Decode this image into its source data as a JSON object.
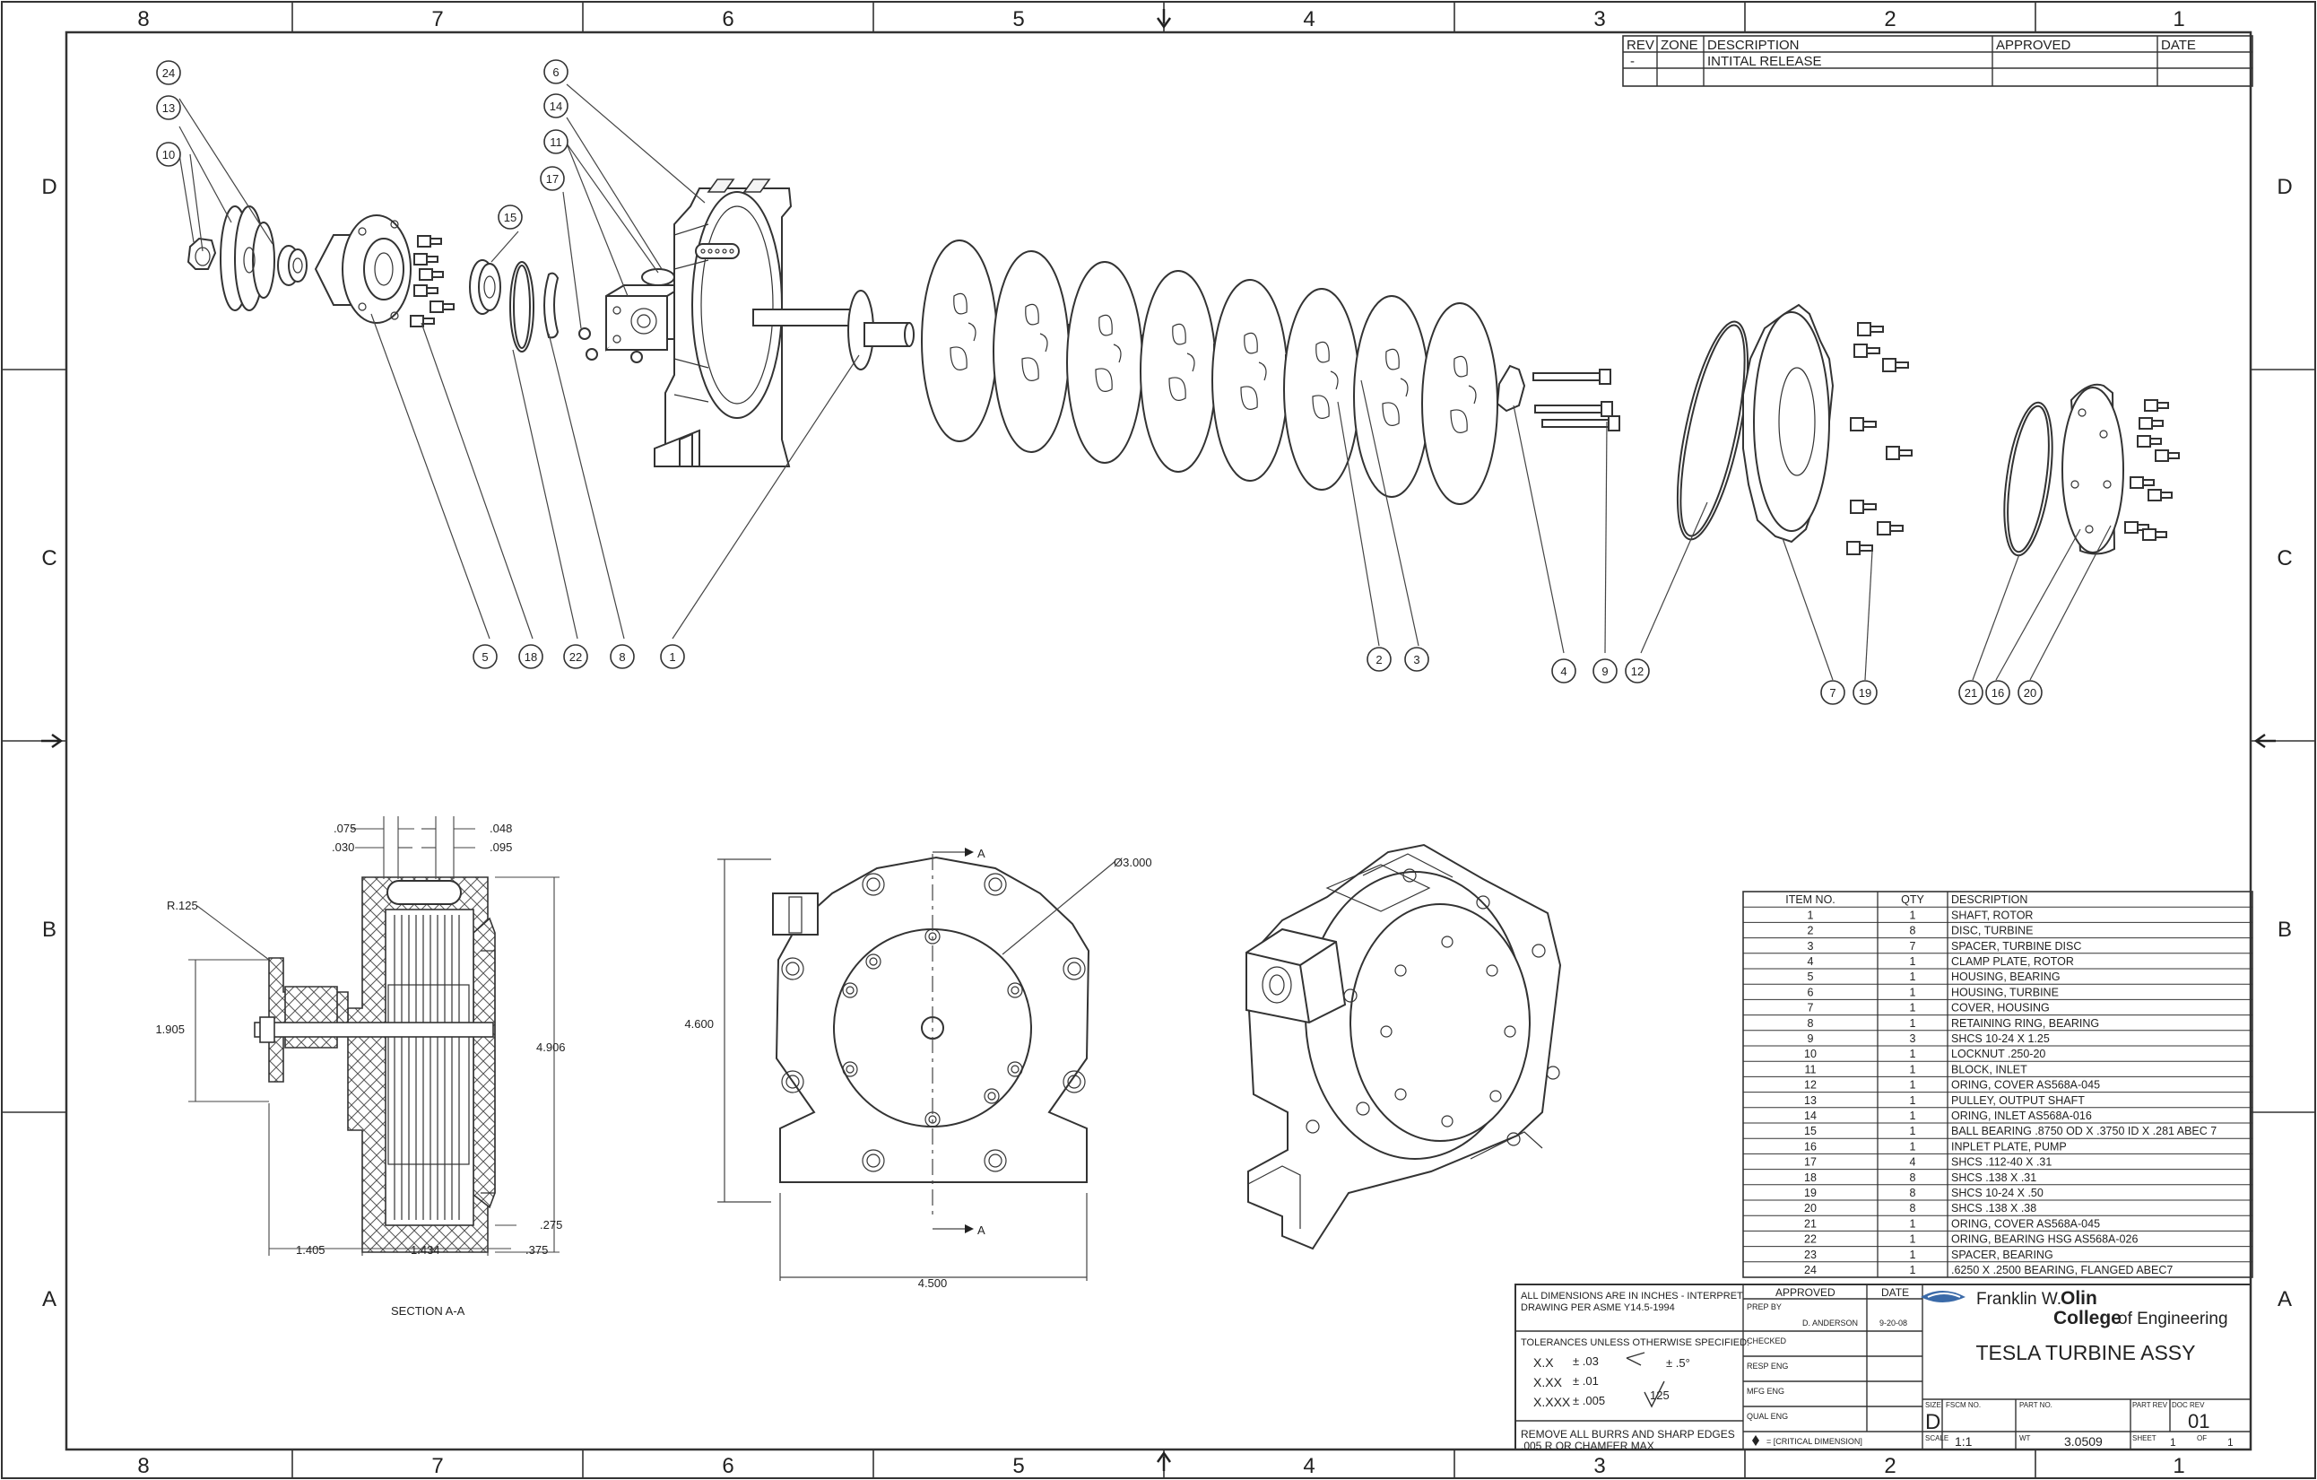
{
  "zones": {
    "columns": [
      "8",
      "7",
      "6",
      "5",
      "4",
      "3",
      "2",
      "1"
    ],
    "rows": [
      "D",
      "C",
      "B",
      "A"
    ]
  },
  "revision_table": {
    "headers": [
      "REV",
      "ZONE",
      "DESCRIPTION",
      "APPROVED",
      "DATE"
    ],
    "rows": [
      [
        "-",
        "",
        "INTITAL RELEASE",
        "",
        ""
      ]
    ]
  },
  "callouts": [
    "24",
    "13",
    "10",
    "6",
    "14",
    "11",
    "17",
    "15",
    "5",
    "18",
    "22",
    "8",
    "1",
    "2",
    "3",
    "4",
    "9",
    "12",
    "7",
    "19",
    "21",
    "16",
    "20"
  ],
  "section": {
    "label": "SECTION A-A",
    "dims": {
      "d075": ".075",
      "d030": ".030",
      "d048": ".048",
      "d095": ".095",
      "r125": "R.125",
      "d1905": "1.905",
      "d4906": "4.906",
      "d275": ".275",
      "d1405": "1.405",
      "d1434": "1.434",
      "d375": ".375"
    }
  },
  "front_view": {
    "dia": "Ø3.000",
    "height": "4.600",
    "width": "4.500",
    "section_mark": "A"
  },
  "bom": {
    "headers": [
      "ITEM NO.",
      "QTY",
      "DESCRIPTION"
    ],
    "rows": [
      [
        "1",
        "1",
        "SHAFT, ROTOR"
      ],
      [
        "2",
        "8",
        "DISC, TURBINE"
      ],
      [
        "3",
        "7",
        "SPACER, TURBINE DISC"
      ],
      [
        "4",
        "1",
        "CLAMP PLATE, ROTOR"
      ],
      [
        "5",
        "1",
        "HOUSING, BEARING"
      ],
      [
        "6",
        "1",
        "HOUSING, TURBINE"
      ],
      [
        "7",
        "1",
        "COVER, HOUSING"
      ],
      [
        "8",
        "1",
        "RETAINING RING, BEARING"
      ],
      [
        "9",
        "3",
        "SHCS 10-24 X 1.25"
      ],
      [
        "10",
        "1",
        "LOCKNUT .250-20"
      ],
      [
        "11",
        "1",
        "BLOCK, INLET"
      ],
      [
        "12",
        "1",
        "ORING, COVER AS568A-045"
      ],
      [
        "13",
        "1",
        "PULLEY, OUTPUT SHAFT"
      ],
      [
        "14",
        "1",
        "ORING, INLET AS568A-016"
      ],
      [
        "15",
        "1",
        "BALL BEARING .8750 OD X .3750 ID X .281 ABEC 7"
      ],
      [
        "16",
        "1",
        "INPLET PLATE, PUMP"
      ],
      [
        "17",
        "4",
        "SHCS .112-40 X .31"
      ],
      [
        "18",
        "8",
        "SHCS .138 X .31"
      ],
      [
        "19",
        "8",
        "SHCS 10-24 X .50"
      ],
      [
        "20",
        "8",
        "SHCS .138 X .38"
      ],
      [
        "21",
        "1",
        "ORING, COVER AS568A-045"
      ],
      [
        "22",
        "1",
        "ORING, BEARING HSG AS568A-026"
      ],
      [
        "23",
        "1",
        "SPACER, BEARING"
      ],
      [
        "24",
        "1",
        ".6250 X .2500 BEARING, FLANGED ABEC7"
      ]
    ]
  },
  "title_block": {
    "notes1": "ALL DIMENSIONS ARE IN INCHES - INTERPRET",
    "notes2": "DRAWING PER ASME Y14.5-1994",
    "tol_title": "TOLERANCES UNLESS OTHERWISE SPECIFIED:",
    "tol_x": "X.X",
    "tol_x_val": "± .03",
    "tol_xx": "X.XX",
    "tol_xx_val": "± .01",
    "tol_xxx": "X.XXX",
    "tol_xxx_val": "± .005",
    "tol_angle": "± .5°",
    "finish": "125",
    "burrs1": "REMOVE ALL BURRS AND SHARP EDGES",
    "burrs2": ".005 R OR CHAMFER MAX",
    "approved": "APPROVED",
    "date": "DATE",
    "prep_by": "PREP BY",
    "prep_name": "D. ANDERSON",
    "prep_date": "9-20-08",
    "checked": "CHECKED",
    "resp_eng": "RESP ENG",
    "mfg_eng": "MFG ENG",
    "qual_eng": "QUAL ENG",
    "critical": "= [CRITICAL DIMENSION]",
    "logo_line1a": "Franklin W.",
    "logo_line1b": "Olin",
    "logo_line2a": "College",
    "logo_line2b": "of Engineering",
    "title": "TESLA TURBINE ASSY",
    "size_label": "SIZE",
    "size": "D",
    "fscm_label": "FSCM NO.",
    "partno_label": "PART NO.",
    "partrev_label": "PART REV",
    "docrev_label": "DOC REV",
    "docrev": "01",
    "scale_label": "SCALE",
    "scale": "1:1",
    "wt_label": "WT",
    "wt": "3.0509",
    "sheet_label": "SHEET",
    "sheet": "1",
    "of_label": "OF",
    "of": "1"
  }
}
